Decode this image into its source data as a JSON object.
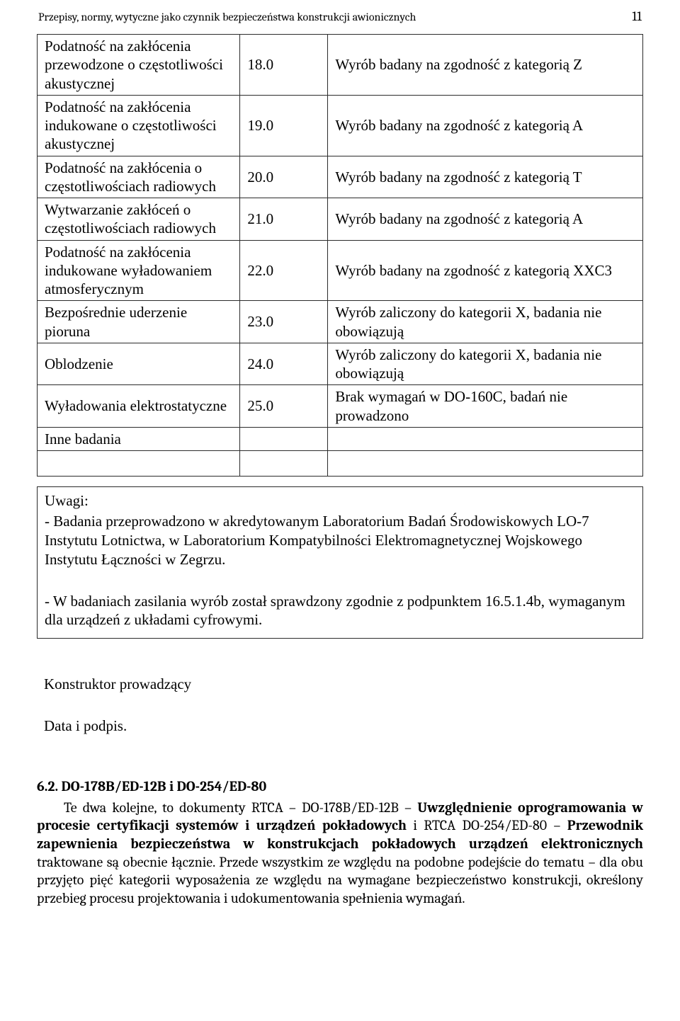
{
  "header": {
    "title": "Przepisy, normy, wytyczne jako czynnik bezpieczeństwa konstrukcji awionicznych",
    "page_number": "11"
  },
  "table": {
    "column_widths_pct": [
      33.5,
      14.5,
      52.0
    ],
    "border_color": "#2b2b2b",
    "font_family": "Times New Roman",
    "font_size_pt": 16,
    "rows": [
      {
        "c1": "Podatność na zakłócenia przewodzone o częstotliwości akustycznej",
        "c2": "18.0",
        "c3": "Wyrób badany na zgodność z kategorią Z"
      },
      {
        "c1": "Podatność na zakłócenia indukowane o częstotliwości akustycznej",
        "c2": "19.0",
        "c3": "Wyrób badany na zgodność z kategorią A"
      },
      {
        "c1": "Podatność na zakłócenia o częstotliwościach radiowych",
        "c2": "20.0",
        "c3": "Wyrób badany na zgodność z kategorią T"
      },
      {
        "c1": "Wytwarzanie zakłóceń o częstotliwościach radiowych",
        "c2": "21.0",
        "c3": "Wyrób badany na zgodność z kategorią A"
      },
      {
        "c1": "Podatność na zakłócenia indukowane wyładowaniem atmosferycznym",
        "c2": "22.0",
        "c3": "Wyrób badany na zgodność z kategorią XXC3"
      },
      {
        "c1": "Bezpośrednie uderzenie pioruna",
        "c2": "23.0",
        "c3": "Wyrób zaliczony do kategorii X, badania nie obowiązują"
      },
      {
        "c1": "Oblodzenie",
        "c2": "24.0",
        "c3": "Wyrób zaliczony do kategorii X, badania nie obowiązują"
      },
      {
        "c1": "Wyładowania elektrostatyczne",
        "c2": "25.0",
        "c3": "Brak wymagań w DO-160C, badań nie prowadzono"
      },
      {
        "c1": "Inne badania",
        "c2": "",
        "c3": ""
      }
    ]
  },
  "remarks": {
    "label": "Uwagi:",
    "note1": " - Badania przeprowadzono w akredytowanym Laboratorium Badań Środowiskowych LO-7 Instytutu Lotnictwa, w Laboratorium Kompatybilności Elektromagnetycznej Wojskowego Instytutu Łączności w Zegrzu.",
    "note2": " - W badaniach zasilania wyrób został sprawdzony zgodnie z podpunktem 16.5.1.4b, wymaganym dla urządzeń z układami cyfrowymi."
  },
  "signature": {
    "line1": "Konstruktor prowadzący",
    "line2": "Data i podpis."
  },
  "body": {
    "heading": "6.2. DO-178B/ED-12B i DO-254/ED-80",
    "p1_prefix": "Te dwa kolejne, to dokumenty RTCA – DO-178B/ED-12B – ",
    "p1_bold1": "Uwzględnienie oprogramowania w procesie certyfikacji systemów i urządzeń pokładowych",
    "p1_mid": " i RTCA DO-254/ED-80 – ",
    "p1_bold2": "Przewodnik zapewnienia bezpieczeństwa w konstrukcjach pokładowych urządzeń elektronicznych",
    "p1_suffix": " traktowane są obecnie łącznie. Przede wszystkim ze względu na podobne podejście do tematu – dla obu przyjęto pięć kategorii wyposażenia ze względu na wymagane bezpieczeństwo konstrukcji, określony przebieg procesu projektowania i udokumentowania spełnienia wymagań."
  },
  "style": {
    "body_font_family": "Cambria",
    "body_font_size_pt": 15,
    "text_color": "#000000",
    "background_color": "#ffffff"
  }
}
